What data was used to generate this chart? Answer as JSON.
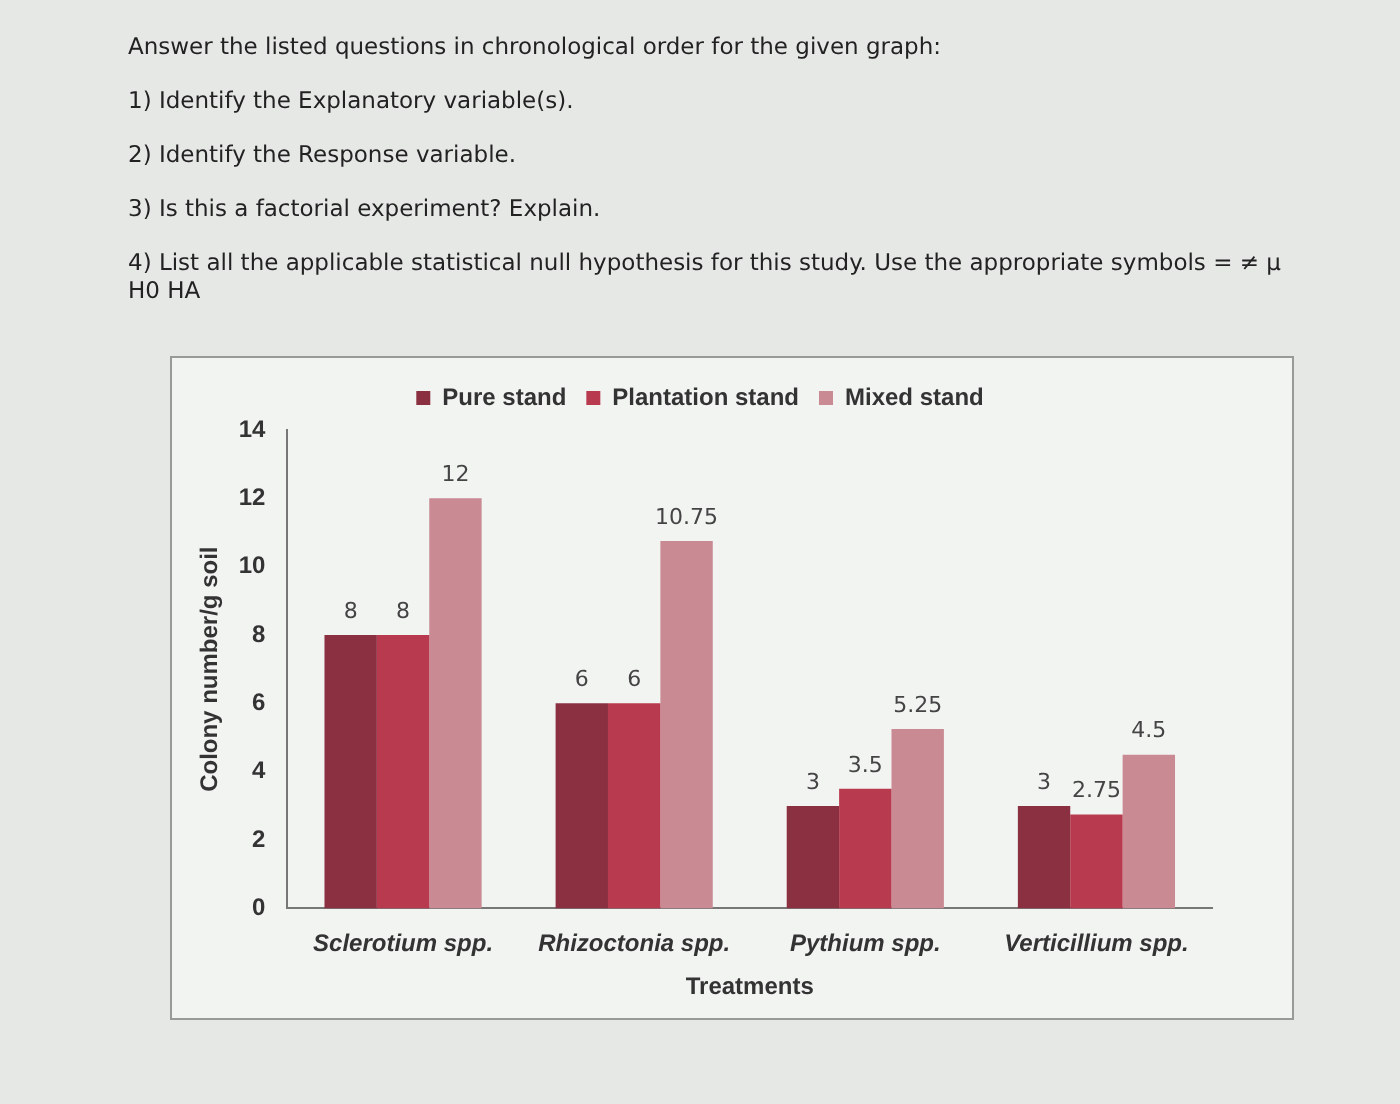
{
  "chart_data": {
    "type": "bar",
    "title": "Answer the listed questions in chronological order for the given graph:",
    "annotations": [
      "1) Identify the Explanatory variable(s).",
      "2) Identify the Response variable.",
      "3) Is this a factorial experiment? Explain.",
      "4) List all the applicable statistical null hypothesis for this study. Use the appropriate symbols = ≠ μ",
      "H0 HA"
    ],
    "xlabel": "Treatments",
    "ylabel": "Colony number/g soil",
    "categories": [
      "Sclerotium spp.",
      "Rhizoctonia spp.",
      "Pythium spp.",
      "Verticillium spp."
    ],
    "series": [
      {
        "name": "Pure stand",
        "color": "#8b3040",
        "values": [
          8,
          6,
          3,
          3
        ]
      },
      {
        "name": "Plantation stand",
        "color": "#b83a4e",
        "values": [
          8,
          6,
          3.5,
          2.75
        ]
      },
      {
        "name": "Mixed stand",
        "color": "#c98a94",
        "values": [
          12,
          10.75,
          5.25,
          4.5
        ]
      }
    ],
    "ylim": [
      0,
      14
    ],
    "yticks": [
      0,
      2,
      4,
      6,
      8,
      10,
      12,
      14
    ],
    "grid": false,
    "legend": "top",
    "data_labels": true
  }
}
